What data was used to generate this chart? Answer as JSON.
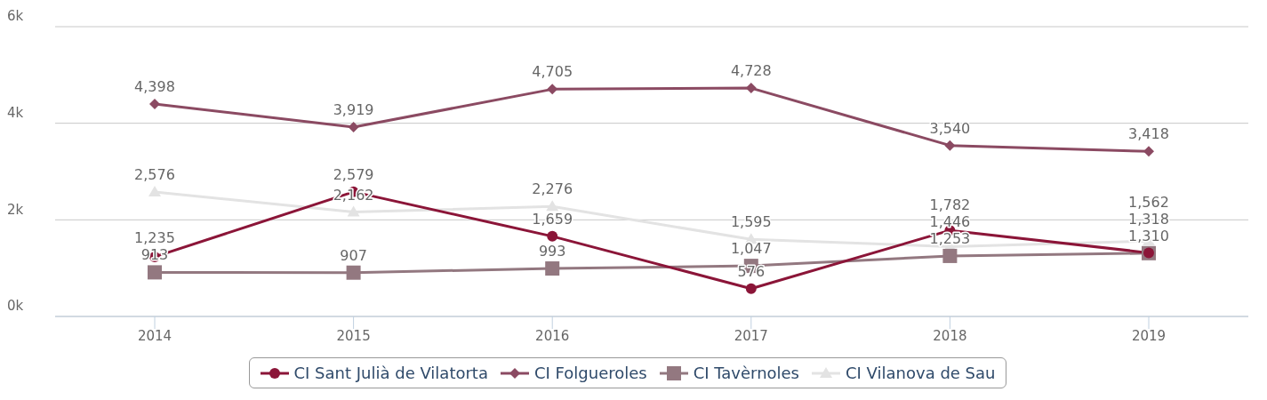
{
  "chart_data": {
    "type": "line",
    "categories": [
      "2014",
      "2015",
      "2016",
      "2017",
      "2018",
      "2019"
    ],
    "series": [
      {
        "name": "CI Sant Julià de Vilatorta",
        "color": "#8b1538",
        "marker": "circle",
        "values": [
          1235,
          2579,
          1659,
          576,
          1782,
          1318
        ],
        "value_labels": [
          "1,235",
          "2,579",
          "1,659",
          "576",
          "1,782",
          "1,318"
        ]
      },
      {
        "name": "CI Folgueroles",
        "color": "#8b4a62",
        "marker": "diamond",
        "values": [
          4398,
          3919,
          4705,
          4728,
          3540,
          3418
        ],
        "value_labels": [
          "4,398",
          "3,919",
          "4,705",
          "4,728",
          "3,540",
          "3,418"
        ]
      },
      {
        "name": "CI Tavèrnoles",
        "color": "#937880",
        "marker": "square",
        "values": [
          913,
          907,
          993,
          1047,
          1253,
          1310
        ],
        "value_labels": [
          "913",
          "907",
          "993",
          "1,047",
          "1,253",
          "1,310"
        ]
      },
      {
        "name": "CI Vilanova de Sau",
        "color": "#e3e3e3",
        "marker": "triangle",
        "values": [
          2576,
          2162,
          2276,
          1595,
          1446,
          1562
        ],
        "value_labels": [
          "2,576",
          "2,162",
          "2,276",
          "1,595",
          "1,446",
          "1,562"
        ]
      }
    ],
    "ylim": [
      0,
      6000
    ],
    "yticks": [
      {
        "value": 0,
        "label": "0k"
      },
      {
        "value": 2000,
        "label": "2k"
      },
      {
        "value": 4000,
        "label": "4k"
      },
      {
        "value": 6000,
        "label": "6k"
      }
    ],
    "grid": "y",
    "legend": "bottom",
    "line_style": "solid"
  }
}
